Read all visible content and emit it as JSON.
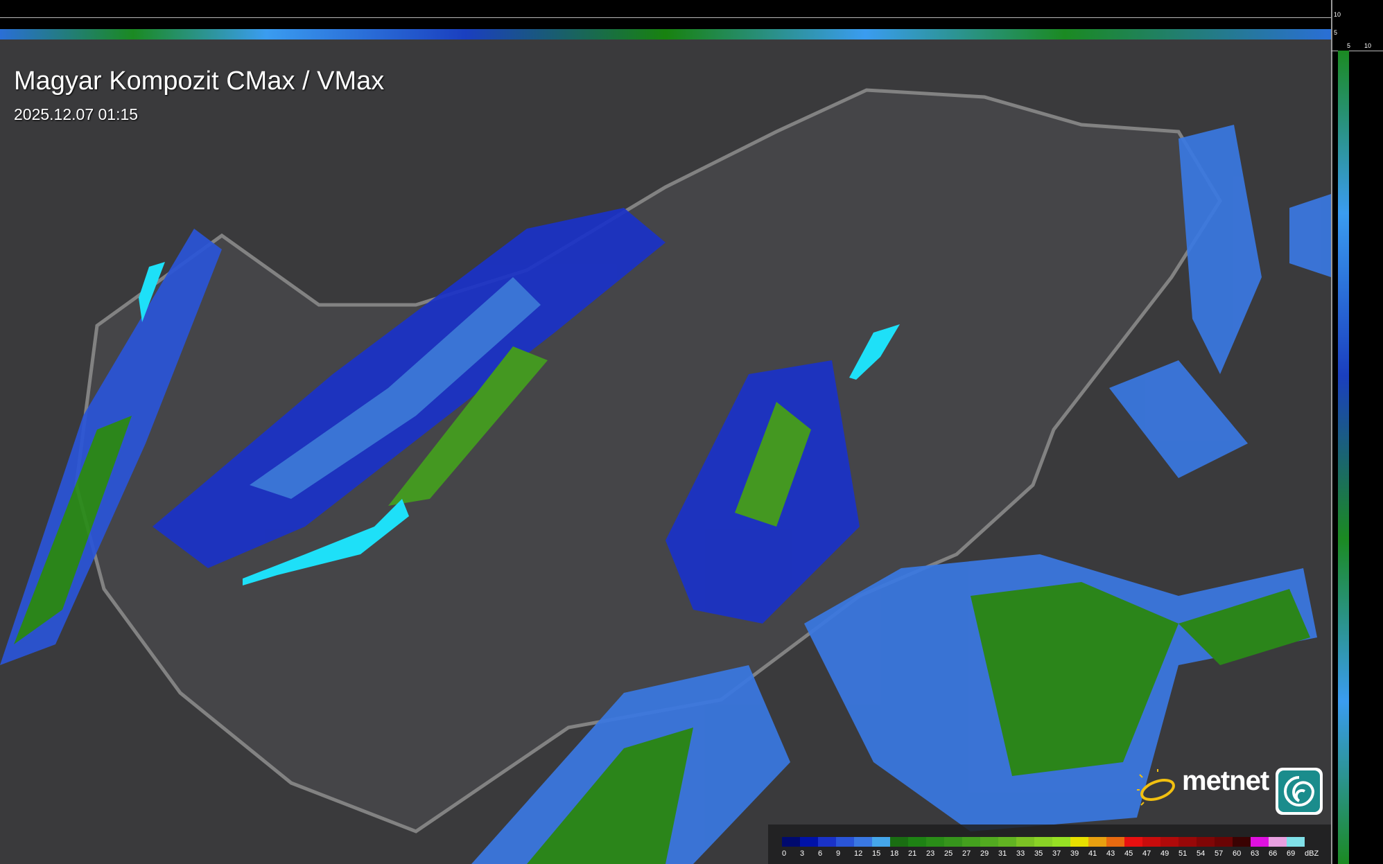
{
  "header": {
    "title": "Magyar Kompozit CMax / VMax",
    "timestamp": "2025.12.07 01:15"
  },
  "cross_section_axes": {
    "top_ticks": [
      "10",
      "5"
    ],
    "side_ticks": [
      "5",
      "10"
    ]
  },
  "legend": {
    "unit": "dBZ",
    "labels": [
      "0",
      "3",
      "6",
      "9",
      "12",
      "15",
      "18",
      "21",
      "23",
      "25",
      "27",
      "29",
      "31",
      "33",
      "35",
      "37",
      "39",
      "41",
      "43",
      "45",
      "47",
      "49",
      "51",
      "54",
      "57",
      "60",
      "63",
      "66",
      "69"
    ],
    "colors": [
      "#000a6e",
      "#0012a8",
      "#1a32c8",
      "#2a55d8",
      "#3a78e2",
      "#45a6ea",
      "#1a6e12",
      "#1e8214",
      "#2a8c18",
      "#36941c",
      "#44a01e",
      "#52aa20",
      "#62b422",
      "#7cc224",
      "#8ad226",
      "#96e024",
      "#e6e000",
      "#e8a010",
      "#e86a10",
      "#e81010",
      "#c80c0c",
      "#b00a0a",
      "#980808",
      "#800606",
      "#6a0404",
      "#3a0202",
      "#e010e0",
      "#e8a0e0",
      "#80e0e8"
    ]
  },
  "brand": {
    "logo_text": "metnet"
  },
  "colors": {
    "lake": "#1ee0f8",
    "border": "#8a8a8a",
    "background": "#3a3a3c"
  }
}
